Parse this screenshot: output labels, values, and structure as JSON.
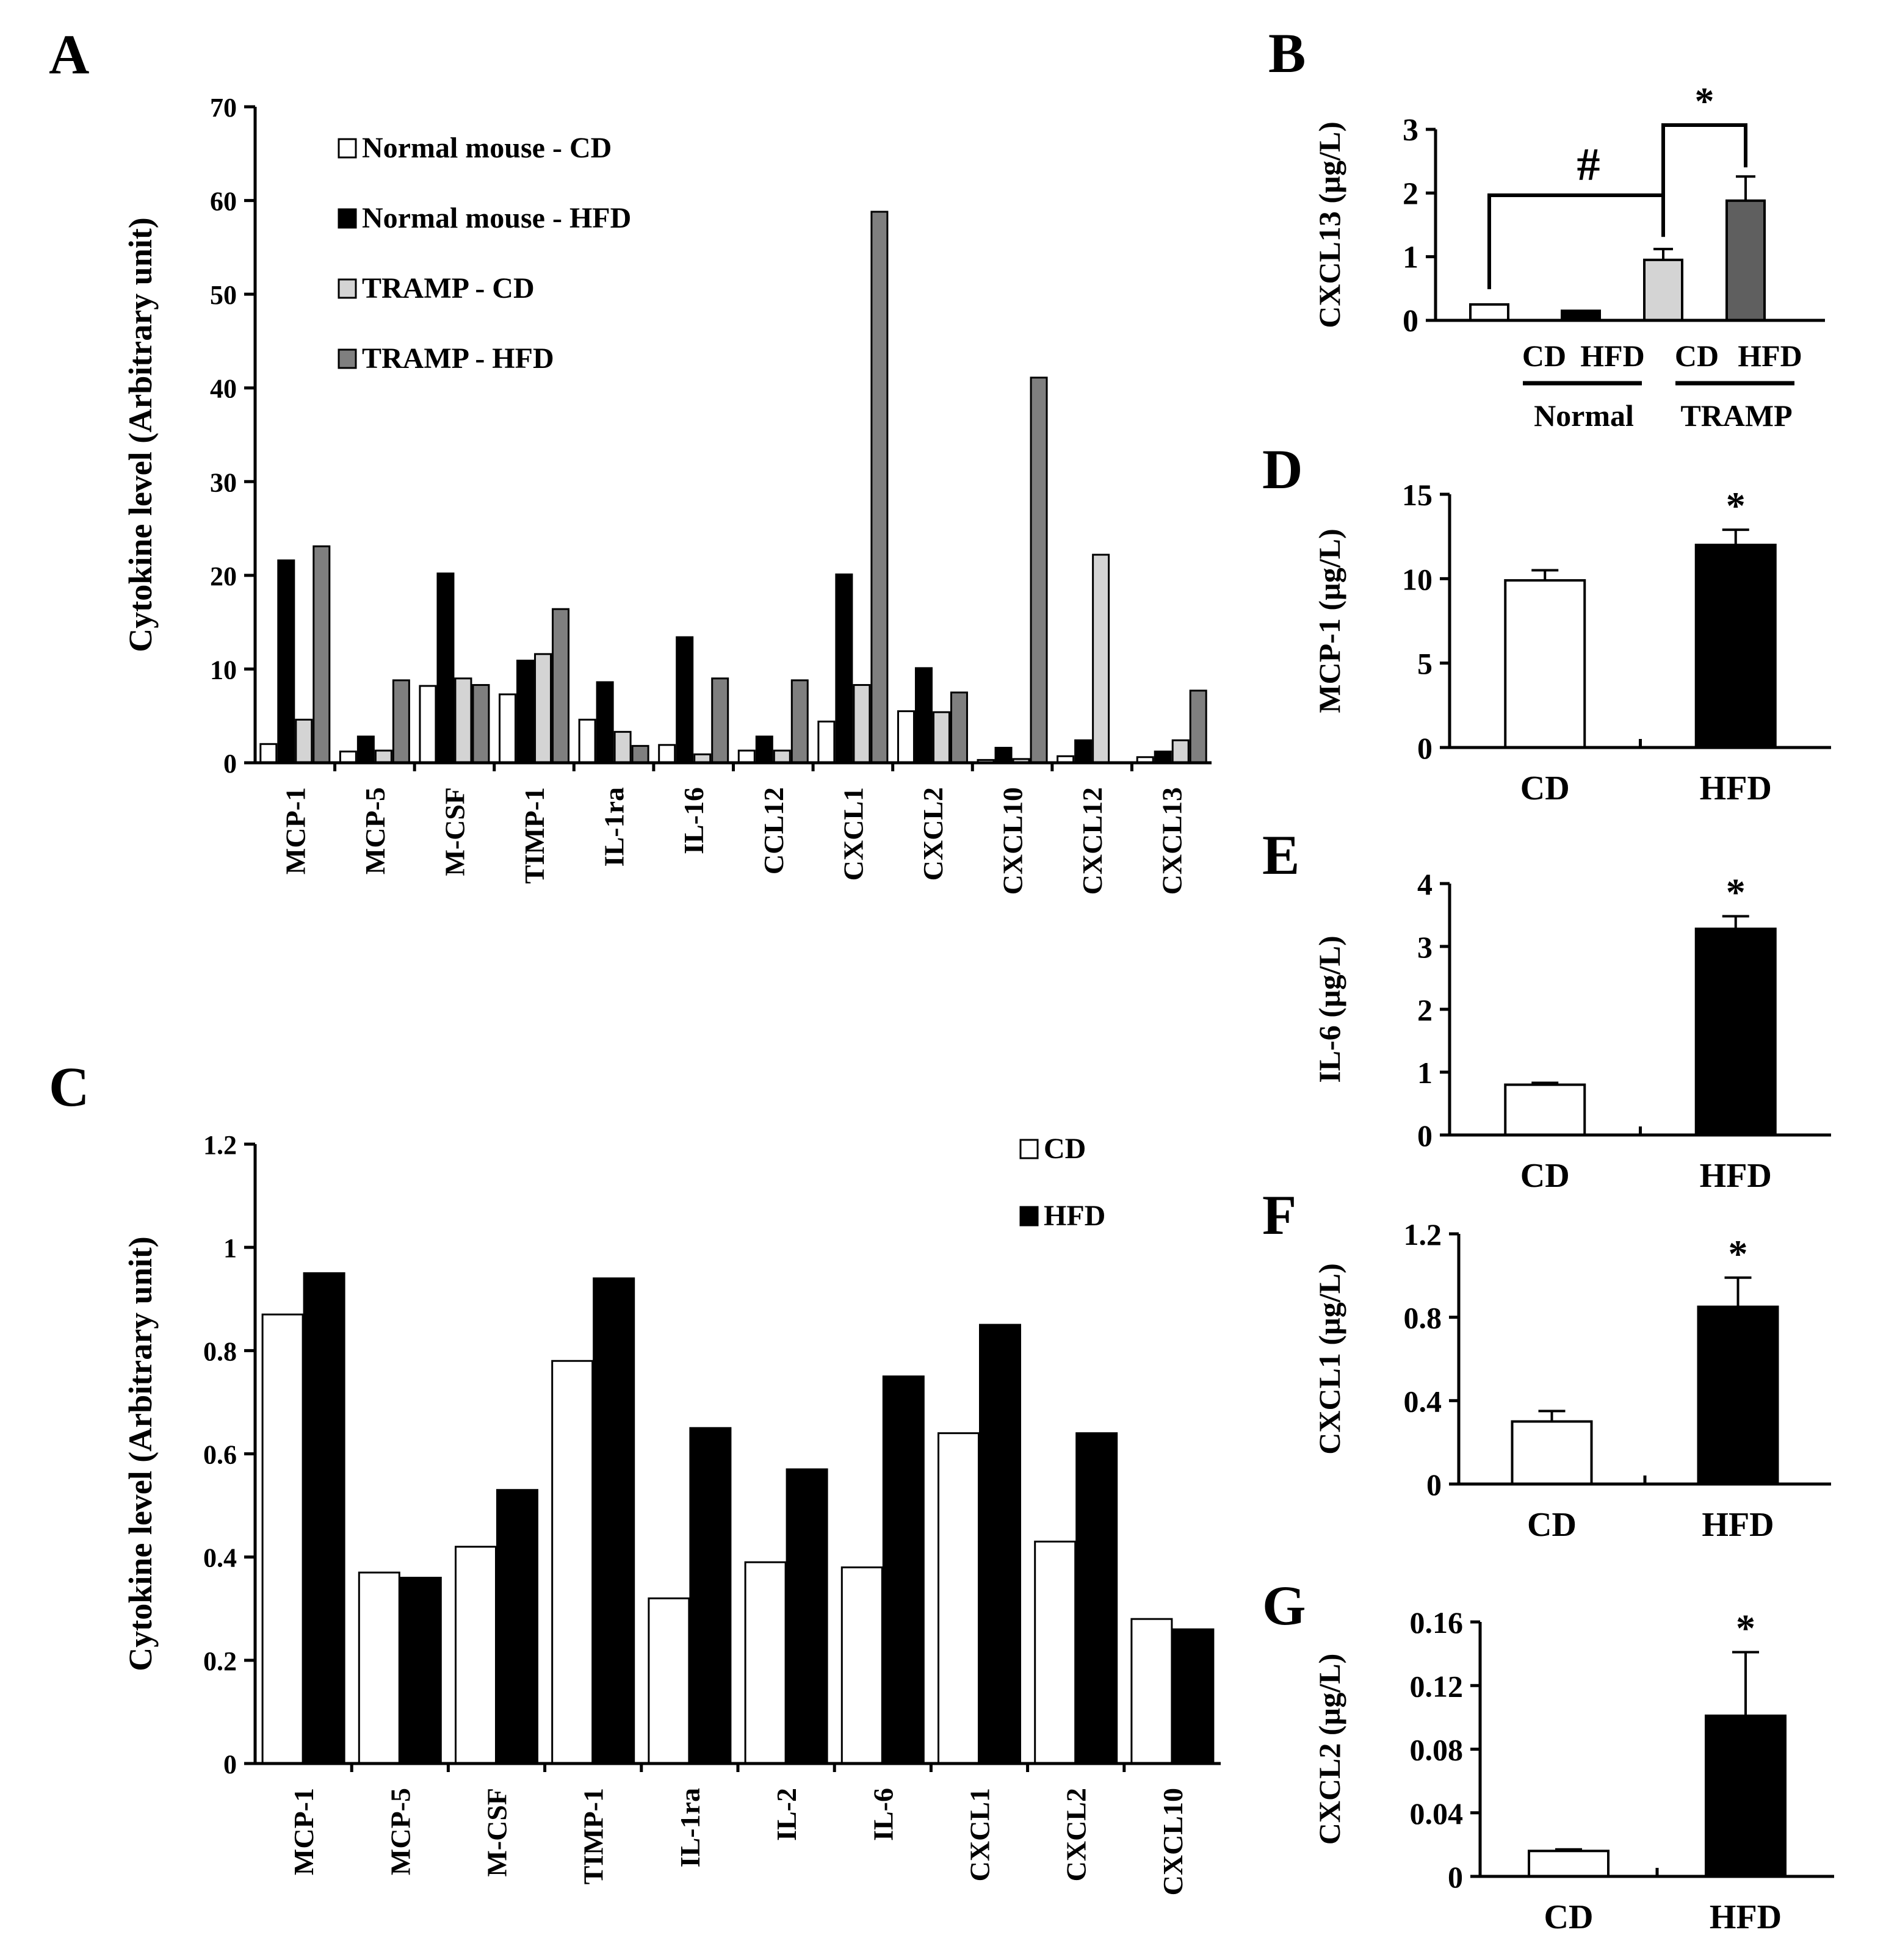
{
  "colors": {
    "normal_cd": "#ffffff",
    "normal_hfd": "#000000",
    "tramp_cd": "#d4d4d4",
    "tramp_hfd": "#7f7f7f",
    "axis": "#000000"
  },
  "chart_data": [
    {
      "panel": "A",
      "type": "bar",
      "ylabel": "Cytokine level (Arbitrary unit)",
      "ylim": [
        0,
        70
      ],
      "yticks": [
        0,
        10,
        20,
        30,
        40,
        50,
        60,
        70
      ],
      "legend_position": "top-left",
      "categories": [
        "MCP-1",
        "MCP-5",
        "M-CSF",
        "TIMP-1",
        "IL-1ra",
        "IL-16",
        "CCL12",
        "CXCL1",
        "CXCL2",
        "CXCL10",
        "CXCL12",
        "CXCL13"
      ],
      "series": [
        {
          "name": "Normal mouse - CD",
          "color": "#ffffff",
          "values": [
            2.0,
            1.2,
            8.2,
            7.3,
            4.6,
            1.9,
            1.3,
            4.4,
            5.5,
            0.3,
            0.7,
            0.6
          ]
        },
        {
          "name": "Normal mouse - HFD",
          "color": "#000000",
          "values": [
            21.6,
            2.8,
            20.2,
            10.9,
            8.6,
            13.4,
            2.8,
            20.1,
            10.1,
            1.6,
            2.4,
            1.2
          ]
        },
        {
          "name": "TRAMP - CD",
          "color": "#d4d4d4",
          "values": [
            4.6,
            1.3,
            9.0,
            11.6,
            3.3,
            0.9,
            1.3,
            8.3,
            5.4,
            0.4,
            22.2,
            2.4
          ]
        },
        {
          "name": "TRAMP - HFD",
          "color": "#7f7f7f",
          "values": [
            23.1,
            8.8,
            8.3,
            16.4,
            1.8,
            9.0,
            8.8,
            58.8,
            7.5,
            41.1,
            0.0,
            7.7
          ]
        }
      ]
    },
    {
      "panel": "B",
      "type": "bar",
      "ylabel": "CXCL13 (µg/L)",
      "ylim": [
        0,
        3
      ],
      "yticks": [
        0,
        1,
        2,
        3
      ],
      "categories": [
        "CD",
        "HFD",
        "CD",
        "HFD"
      ],
      "groups": [
        "Normal",
        "TRAMP"
      ],
      "values": [
        0.25,
        0.15,
        0.95,
        1.88
      ],
      "errors": [
        0,
        0,
        0.17,
        0.38
      ],
      "colors": [
        "#ffffff",
        "#000000",
        "#d4d4d4",
        "#5f5f5f"
      ],
      "annotations": [
        "#",
        "*"
      ]
    },
    {
      "panel": "C",
      "type": "bar",
      "ylabel": "Cytokine level (Arbitrary unit)",
      "ylim": [
        0,
        1.2
      ],
      "yticks": [
        "0",
        "0.2",
        "0.4",
        "0.6",
        "0.8",
        "1",
        "1.2"
      ],
      "legend_position": "top-right",
      "categories": [
        "MCP-1",
        "MCP-5",
        "M-CSF",
        "TIMP-1",
        "IL-1ra",
        "IL-2",
        "IL-6",
        "CXCL1",
        "CXCL2",
        "CXCL10"
      ],
      "series": [
        {
          "name": "CD",
          "color": "#ffffff",
          "values": [
            0.87,
            0.37,
            0.42,
            0.78,
            0.32,
            0.39,
            0.38,
            0.64,
            0.43,
            0.28
          ]
        },
        {
          "name": "HFD",
          "color": "#000000",
          "values": [
            0.95,
            0.36,
            0.53,
            0.94,
            0.65,
            0.57,
            0.75,
            0.85,
            0.64,
            0.26
          ]
        }
      ]
    },
    {
      "panel": "D",
      "type": "bar",
      "ylabel": "MCP-1 (µg/L)",
      "ylim": [
        0,
        15
      ],
      "yticks": [
        "0",
        "5",
        "10",
        "15"
      ],
      "categories": [
        "CD",
        "HFD"
      ],
      "values": [
        9.9,
        12.0
      ],
      "errors": [
        0.6,
        0.9
      ],
      "colors": [
        "#ffffff",
        "#000000"
      ],
      "annotation": "*"
    },
    {
      "panel": "E",
      "type": "bar",
      "ylabel": "IL-6 (µg/L)",
      "ylim": [
        0,
        4
      ],
      "yticks": [
        "0",
        "1",
        "2",
        "3",
        "4"
      ],
      "categories": [
        "CD",
        "HFD"
      ],
      "values": [
        0.8,
        3.28
      ],
      "errors": [
        0.03,
        0.2
      ],
      "colors": [
        "#ffffff",
        "#000000"
      ],
      "annotation": "*"
    },
    {
      "panel": "F",
      "type": "bar",
      "ylabel": "CXCL1 (µg/L)",
      "ylim": [
        0,
        1.2
      ],
      "yticks": [
        "0",
        "0.4",
        "0.8",
        "1.2"
      ],
      "categories": [
        "CD",
        "HFD"
      ],
      "values": [
        0.3,
        0.85
      ],
      "errors": [
        0.05,
        0.14
      ],
      "colors": [
        "#ffffff",
        "#000000"
      ],
      "annotation": "*"
    },
    {
      "panel": "G",
      "type": "bar",
      "ylabel": "CXCL2 (µg/L)",
      "ylim": [
        0,
        0.16
      ],
      "yticks": [
        "0",
        "0.04",
        "0.08",
        "0.12",
        "0.16"
      ],
      "categories": [
        "CD",
        "HFD"
      ],
      "values": [
        0.016,
        0.101
      ],
      "errors": [
        0.001,
        0.04
      ],
      "colors": [
        "#ffffff",
        "#000000"
      ],
      "annotation": "*"
    }
  ]
}
